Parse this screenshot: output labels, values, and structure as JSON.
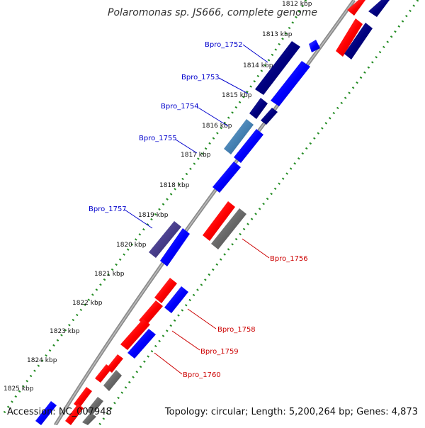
{
  "title": "Polaromonas sp. JS666, complete genome",
  "footer": {
    "accession": "Accession: NC_007948",
    "summary": "Topology: circular; Length: 5,200,264 bp; Genes: 4,873"
  },
  "ticks": [
    "1812 kbp",
    "1813 kbp",
    "1814 kbp",
    "1815 kbp",
    "1816 kbp",
    "1817 kbp",
    "1818 kbp",
    "1819 kbp",
    "1820 kbp",
    "1821 kbp",
    "1822 kbp",
    "1823 kbp",
    "1824 kbp",
    "1825 kbp"
  ],
  "gene_labels": {
    "Bpro_1752": "Bpro_1752",
    "Bpro_1753": "Bpro_1753",
    "Bpro_1754": "Bpro_1754",
    "Bpro_1755": "Bpro_1755",
    "Bpro_1757": "Bpro_1757",
    "Bpro_1756": "Bpro_1756",
    "Bpro_1758": "Bpro_1758",
    "Bpro_1759": "Bpro_1759",
    "Bpro_1760": "Bpro_1760"
  },
  "colors": {
    "backbone": "#8c8c8c",
    "tick_dots": "#228b22",
    "red": "#ff0000",
    "blue": "#0000ff",
    "navy": "#000080",
    "steelblue": "#4682b4",
    "slate": "#483d8b",
    "gray": "#696969",
    "label_blue": "#0000cc",
    "label_red": "#cc0000"
  }
}
